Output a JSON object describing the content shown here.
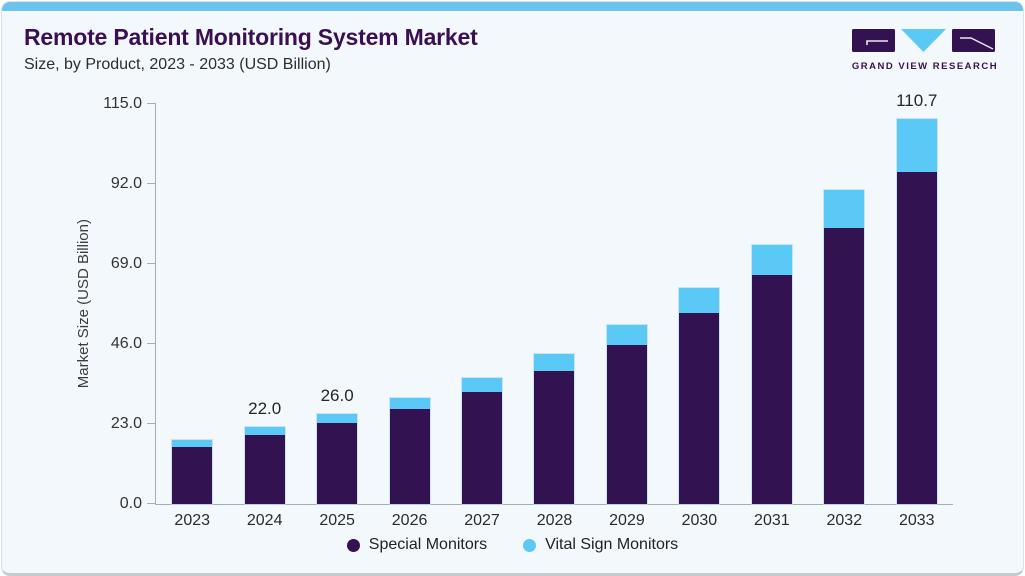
{
  "header": {
    "title": "Remote Patient Monitoring System Market",
    "subtitle": "Size, by Product, 2023 - 2033 (USD Billion)"
  },
  "logo": {
    "name": "Grand View Research logo",
    "text": "GRAND VIEW RESEARCH"
  },
  "colors": {
    "special_monitors": "#321250",
    "vital_sign_monitors": "#5bc9f5",
    "accent_bar": "#6cc4ec",
    "title_text": "#3a1053",
    "card_background": "#f2f8fb",
    "axis": "#a4adb5"
  },
  "chart_data": {
    "type": "bar",
    "stacked": true,
    "title": "Remote Patient Monitoring System Market Size, by Product, 2023 - 2033 (USD Billion)",
    "xlabel": "",
    "ylabel": "Market Size (USD Billion)",
    "ylim": [
      0,
      115
    ],
    "yticks": [
      0.0,
      23.0,
      46.0,
      69.0,
      92.0,
      115.0
    ],
    "ytick_labels": [
      "0.0",
      "23.0",
      "46.0",
      "69.0",
      "92.0",
      "115.0"
    ],
    "grid": false,
    "legend_position": "bottom",
    "categories": [
      "2023",
      "2024",
      "2025",
      "2026",
      "2027",
      "2028",
      "2029",
      "2030",
      "2031",
      "2032",
      "2033"
    ],
    "series": [
      {
        "name": "Special Monitors",
        "color": "#321250",
        "values": [
          16.5,
          19.8,
          23.2,
          27.3,
          32.2,
          38.2,
          45.7,
          54.8,
          65.9,
          79.5,
          95.4
        ]
      },
      {
        "name": "Vital Sign Monitors",
        "color": "#5bc9f5",
        "values": [
          2.0,
          2.2,
          2.8,
          3.3,
          4.0,
          4.8,
          5.8,
          7.2,
          8.7,
          10.8,
          15.3
        ]
      }
    ],
    "totals": [
      18.5,
      22.0,
      26.0,
      30.6,
      36.2,
      43.0,
      51.5,
      62.0,
      74.6,
      90.3,
      110.7
    ],
    "bar_labels": [
      "",
      "22.0",
      "26.0",
      "",
      "",
      "",
      "",
      "",
      "",
      "",
      "110.7"
    ]
  }
}
